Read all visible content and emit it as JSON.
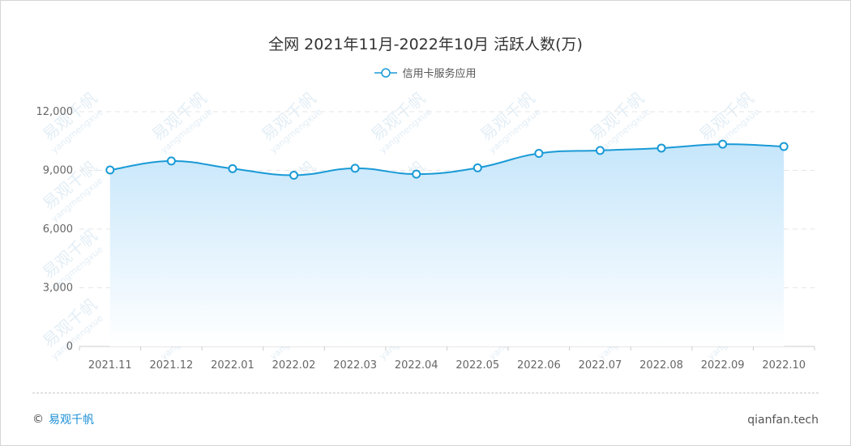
{
  "chart_data": {
    "type": "area",
    "title": "全网 2021年11月-2022年10月 活跃人数(万)",
    "categories": [
      "2021.11",
      "2021.12",
      "2022.01",
      "2022.02",
      "2022.03",
      "2022.04",
      "2022.05",
      "2022.06",
      "2022.07",
      "2022.08",
      "2022.09",
      "2022.10"
    ],
    "series": [
      {
        "name": "信用卡服务应用",
        "values": [
          9020,
          9480,
          9090,
          8750,
          9110,
          8810,
          9130,
          9870,
          10020,
          10140,
          10340,
          10220
        ]
      }
    ],
    "ylim": [
      0,
      12000
    ],
    "yticks": [
      "0",
      "3,000",
      "6,000",
      "9,000",
      "12,000"
    ],
    "grid": true,
    "legend": "top-center",
    "colors": {
      "line": "#1a9ad6",
      "area_top": "#c6e6fb",
      "marker_fill": "#ffffff"
    }
  },
  "footer": {
    "copyright_symbol": "©",
    "brand": "易观千帆",
    "site": "qianfan.tech"
  },
  "watermark": {
    "brand": "易观千帆",
    "pinyin": "yangmengxue",
    "color": "#e3eef6"
  }
}
